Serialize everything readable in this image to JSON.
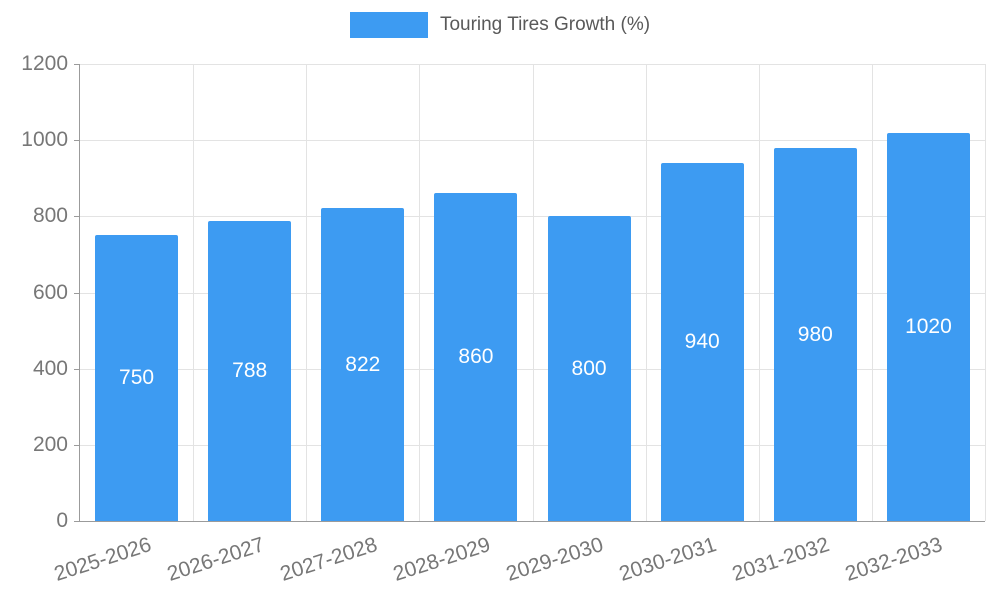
{
  "chart_data": {
    "type": "bar",
    "title": "Touring Tires Growth (%)",
    "categories": [
      "2025-2026",
      "2026-2027",
      "2027-2028",
      "2028-2029",
      "2029-2030",
      "2030-2031",
      "2031-2032",
      "2032-2033"
    ],
    "values": [
      750,
      788,
      822,
      860,
      800,
      940,
      980,
      1020
    ],
    "xlabel": "",
    "ylabel": "",
    "ylim": [
      0,
      1200
    ],
    "yticks": [
      0,
      200,
      400,
      600,
      800,
      1000,
      1200
    ],
    "grid": true,
    "legend_position": "top",
    "bar_color": "#3D9BF2",
    "bar_label_color": "#FFFFFF",
    "grid_color": "#E3E3E3",
    "axis_color": "#9B9B9B",
    "tick_text_color": "#777777"
  }
}
